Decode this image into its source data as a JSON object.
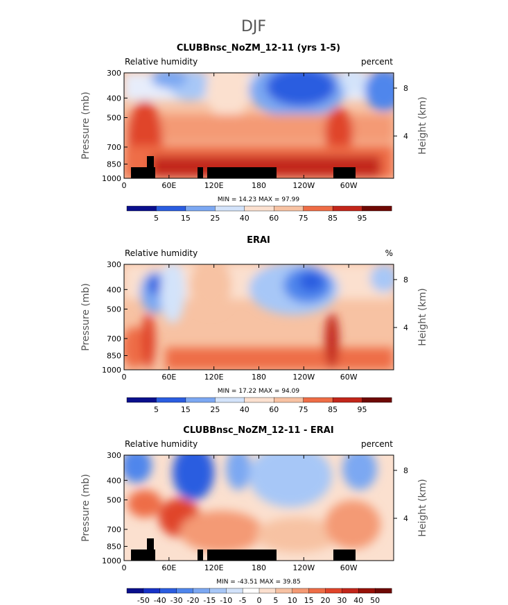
{
  "figure_title": "DJF",
  "chart_data": [
    {
      "type": "heatmap",
      "title": "CLUBBnsc_NoZM_12-11 (yrs 1-5)",
      "left_label": "Relative humidity",
      "right_label": "percent",
      "ylabel": "Pressure (mb)",
      "y2label": "Height (km)",
      "x_ticks": [
        "0",
        "60E",
        "120E",
        "180",
        "120W",
        "60W"
      ],
      "y_ticks": [
        "300",
        "400",
        "500",
        "700",
        "850",
        "1000"
      ],
      "y2_ticks": [
        "8",
        "4"
      ],
      "stats": "MIN =  14.23   MAX =  97.99",
      "colorbar_labels": [
        "5",
        "15",
        "25",
        "40",
        "60",
        "75",
        "85",
        "95"
      ],
      "ylim": [
        1000,
        300
      ]
    },
    {
      "type": "heatmap",
      "title": "ERAI",
      "left_label": "Relative humidity",
      "right_label": "%",
      "ylabel": "Pressure (mb)",
      "y2label": "Height (km)",
      "x_ticks": [
        "0",
        "60E",
        "120E",
        "180",
        "120W",
        "60W"
      ],
      "y_ticks": [
        "300",
        "400",
        "500",
        "700",
        "850",
        "1000"
      ],
      "y2_ticks": [
        "8",
        "4"
      ],
      "stats": "MIN =  17.22   MAX =  94.09",
      "colorbar_labels": [
        "5",
        "15",
        "25",
        "40",
        "60",
        "75",
        "85",
        "95"
      ],
      "ylim": [
        1000,
        300
      ]
    },
    {
      "type": "heatmap",
      "title": "CLUBBnsc_NoZM_12-11 - ERAI",
      "left_label": "Relative humidity",
      "right_label": "percent",
      "ylabel": "Pressure (mb)",
      "y2label": "Height (km)",
      "x_ticks": [
        "0",
        "60E",
        "120E",
        "180",
        "120W",
        "60W"
      ],
      "y_ticks": [
        "300",
        "400",
        "500",
        "700",
        "850",
        "1000"
      ],
      "y2_ticks": [
        "8",
        "4"
      ],
      "stats": "MIN = -43.51   MAX =  39.85",
      "colorbar_labels": [
        "-50",
        "-40",
        "-30",
        "-20",
        "-15",
        "-10",
        "-5",
        "0",
        "5",
        "10",
        "15",
        "20",
        "30",
        "40",
        "50"
      ],
      "ylim": [
        1000,
        300
      ]
    }
  ],
  "palette": [
    "#0a0f8c",
    "#1732c7",
    "#2b5de0",
    "#4f86ec",
    "#7ca8f2",
    "#a7c7f7",
    "#d3e3fa",
    "#ffffff",
    "#fbe0cf",
    "#f7c2a3",
    "#f49a74",
    "#ee6d46",
    "#e0442a",
    "#c2261a",
    "#971108",
    "#6e0904"
  ]
}
